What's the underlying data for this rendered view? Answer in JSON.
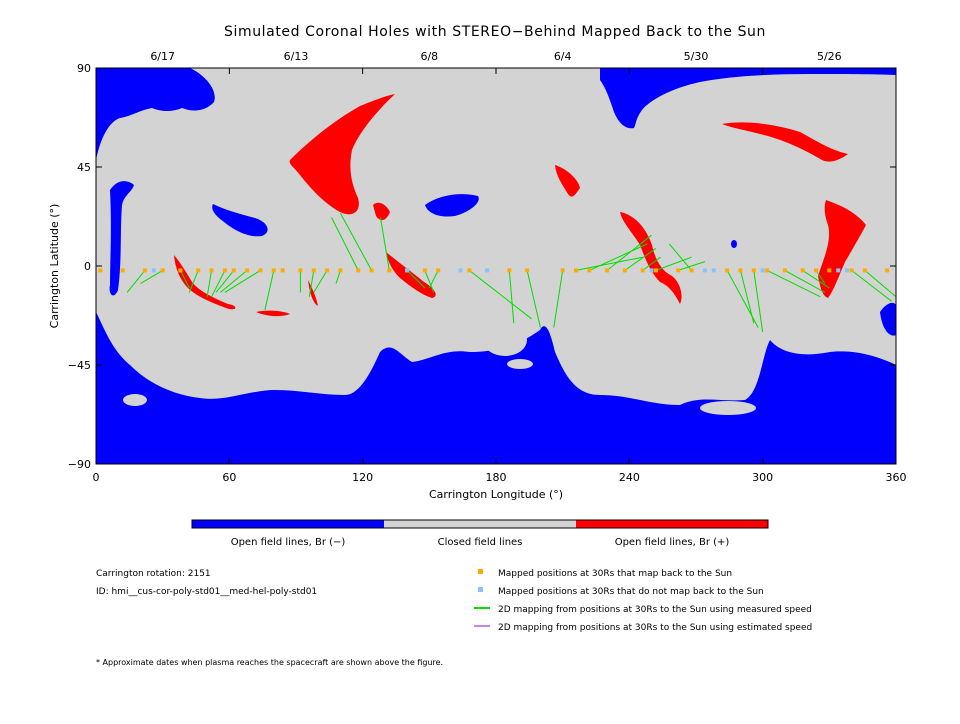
{
  "chart_data": {
    "type": "map",
    "title": "Simulated Coronal Holes with STEREO−Behind Mapped Back to the Sun",
    "xlabel": "Carrington Longitude (°)",
    "ylabel": "Carrington Latitude (°)",
    "xlim": [
      0,
      360
    ],
    "ylim": [
      -90,
      90
    ],
    "x_ticks": [
      "0",
      "60",
      "120",
      "180",
      "240",
      "300",
      "360"
    ],
    "y_ticks": [
      "90",
      "45",
      "0",
      "−45",
      "−90"
    ],
    "top_date_ticks": [
      {
        "label": "6/17",
        "lon": 30
      },
      {
        "label": "6/13",
        "lon": 90
      },
      {
        "label": "6/8",
        "lon": 150
      },
      {
        "label": "6/4",
        "lon": 210
      },
      {
        "label": "5/30",
        "lon": 270
      },
      {
        "label": "5/26",
        "lon": 330
      }
    ],
    "colorbar": [
      {
        "label": "Open field lines, Br (−)",
        "color": "#0000ff"
      },
      {
        "label": "Closed field lines",
        "color": "#d3d3d3"
      },
      {
        "label": "Open field lines, Br (+)",
        "color": "#ff0000"
      }
    ],
    "colors": {
      "open_negative": "#0000ff",
      "closed": "#d3d3d3",
      "open_positive": "#ff0000",
      "mapped_back": "#ffaa00",
      "not_mapped": "#87c3ff",
      "measured_speed": "#00dd00",
      "estimated_speed": "#bb88ee"
    },
    "mapped_positions_30Rs": {
      "maps_back_lon": [
        2,
        12,
        22,
        30,
        38,
        46,
        52,
        58,
        62,
        68,
        74,
        80,
        84,
        92,
        98,
        104,
        110,
        118,
        124,
        132,
        140,
        148,
        154,
        168,
        186,
        194,
        210,
        216,
        222,
        230,
        238,
        246,
        252,
        262,
        268,
        284,
        290,
        296,
        302,
        310,
        318,
        324,
        330,
        340,
        346,
        356
      ],
      "not_mapped_lon": [
        26,
        140,
        164,
        176,
        250,
        274,
        278,
        300,
        334,
        338
      ],
      "latitude": -2
    },
    "field_line_mappings_measured": [
      {
        "from": [
          22,
          -2
        ],
        "to": [
          14,
          -12
        ]
      },
      {
        "from": [
          30,
          -2
        ],
        "to": [
          20,
          -8
        ]
      },
      {
        "from": [
          38,
          -2
        ],
        "to": [
          42,
          -10
        ]
      },
      {
        "from": [
          46,
          -2
        ],
        "to": [
          42,
          -12
        ]
      },
      {
        "from": [
          52,
          -2
        ],
        "to": [
          50,
          -14
        ]
      },
      {
        "from": [
          58,
          -2
        ],
        "to": [
          52,
          -14
        ]
      },
      {
        "from": [
          62,
          -2
        ],
        "to": [
          54,
          -12
        ]
      },
      {
        "from": [
          68,
          -2
        ],
        "to": [
          56,
          -12
        ]
      },
      {
        "from": [
          74,
          -2
        ],
        "to": [
          58,
          -12
        ]
      },
      {
        "from": [
          80,
          -2
        ],
        "to": [
          76,
          -20
        ]
      },
      {
        "from": [
          92,
          -2
        ],
        "to": [
          92,
          -12
        ]
      },
      {
        "from": [
          98,
          -2
        ],
        "to": [
          96,
          -14
        ]
      },
      {
        "from": [
          104,
          -2
        ],
        "to": [
          98,
          -12
        ]
      },
      {
        "from": [
          110,
          -2
        ],
        "to": [
          108,
          -8
        ]
      },
      {
        "from": [
          118,
          -2
        ],
        "to": [
          106,
          22
        ]
      },
      {
        "from": [
          124,
          -2
        ],
        "to": [
          110,
          24
        ]
      },
      {
        "from": [
          132,
          -2
        ],
        "to": [
          128,
          22
        ]
      },
      {
        "from": [
          140,
          -2
        ],
        "to": [
          148,
          -10
        ]
      },
      {
        "from": [
          148,
          -2
        ],
        "to": [
          152,
          -12
        ]
      },
      {
        "from": [
          154,
          -2
        ],
        "to": [
          150,
          -10
        ]
      },
      {
        "from": [
          168,
          -2
        ],
        "to": [
          196,
          -24
        ]
      },
      {
        "from": [
          186,
          -2
        ],
        "to": [
          188,
          -26
        ]
      },
      {
        "from": [
          194,
          -2
        ],
        "to": [
          200,
          -28
        ]
      },
      {
        "from": [
          210,
          -2
        ],
        "to": [
          206,
          -28
        ]
      },
      {
        "from": [
          216,
          -2
        ],
        "to": [
          246,
          4
        ]
      },
      {
        "from": [
          222,
          -2
        ],
        "to": [
          248,
          10
        ]
      },
      {
        "from": [
          230,
          -2
        ],
        "to": [
          250,
          14
        ]
      },
      {
        "from": [
          238,
          -2
        ],
        "to": [
          252,
          8
        ]
      },
      {
        "from": [
          246,
          -2
        ],
        "to": [
          254,
          4
        ]
      },
      {
        "from": [
          252,
          -2
        ],
        "to": [
          268,
          4
        ]
      },
      {
        "from": [
          262,
          -2
        ],
        "to": [
          274,
          2
        ]
      },
      {
        "from": [
          268,
          -2
        ],
        "to": [
          258,
          10
        ]
      },
      {
        "from": [
          284,
          -2
        ],
        "to": [
          298,
          -28
        ]
      },
      {
        "from": [
          290,
          -2
        ],
        "to": [
          296,
          -26
        ]
      },
      {
        "from": [
          296,
          -2
        ],
        "to": [
          300,
          -30
        ]
      },
      {
        "from": [
          302,
          -2
        ],
        "to": [
          326,
          -14
        ]
      },
      {
        "from": [
          310,
          -2
        ],
        "to": [
          328,
          -12
        ]
      },
      {
        "from": [
          318,
          -2
        ],
        "to": [
          330,
          -10
        ]
      },
      {
        "from": [
          324,
          -2
        ],
        "to": [
          328,
          -8
        ]
      },
      {
        "from": [
          340,
          -2
        ],
        "to": [
          358,
          -16
        ]
      },
      {
        "from": [
          346,
          -2
        ],
        "to": [
          360,
          -14
        ]
      }
    ],
    "info": {
      "carrington_rotation": "Carrington rotation: 2151",
      "id": "ID: hmi__cus-cor-poly-std01__med-hel-poly-std01"
    },
    "legend": [
      {
        "label": "Mapped positions at 30Rs that map back to the Sun",
        "marker": "square",
        "color": "#ffaa00"
      },
      {
        "label": "Mapped positions at 30Rs that do not map back to the Sun",
        "marker": "square",
        "color": "#87c3ff"
      },
      {
        "label": "2D mapping from positions at 30Rs to the Sun using measured speed",
        "marker": "line",
        "color": "#00dd00"
      },
      {
        "label": "2D mapping from positions at 30Rs to the Sun using estimated speed",
        "marker": "line",
        "color": "#bb88ee"
      }
    ],
    "footnote": "* Approximate dates when plasma reaches the spacecraft are shown above the figure."
  }
}
